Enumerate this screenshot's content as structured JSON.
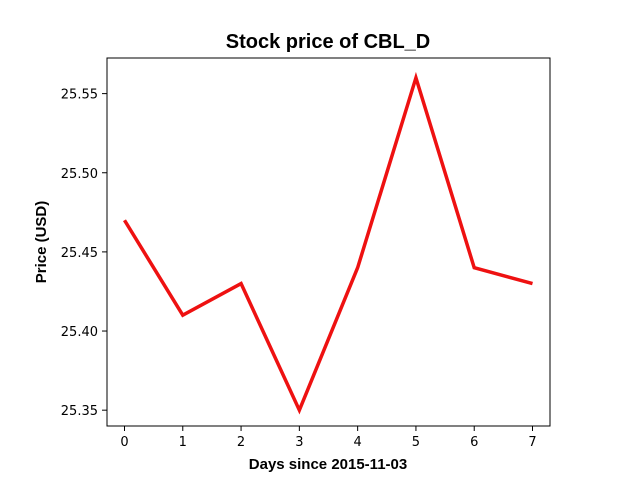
{
  "chart_data": {
    "type": "line",
    "title": "Stock price of CBL_D",
    "xlabel": "Days since 2015-11-03",
    "ylabel": "Price (USD)",
    "x": [
      0,
      1,
      2,
      3,
      4,
      5,
      6,
      7
    ],
    "series": [
      {
        "values": [
          25.47,
          25.41,
          25.43,
          25.35,
          25.44,
          25.56,
          25.44,
          25.43
        ],
        "color": "#ee1111"
      }
    ],
    "xlim": [
      -0.3,
      7.3
    ],
    "ylim": [
      25.34,
      25.5725
    ],
    "xticks": [
      0,
      1,
      2,
      3,
      4,
      5,
      6,
      7
    ],
    "yticks": [
      25.35,
      25.4,
      25.45,
      25.5,
      25.55
    ],
    "ytick_labels": [
      "25.35",
      "25.40",
      "25.45",
      "25.50",
      "25.55"
    ],
    "grid": false,
    "legend": "none"
  }
}
